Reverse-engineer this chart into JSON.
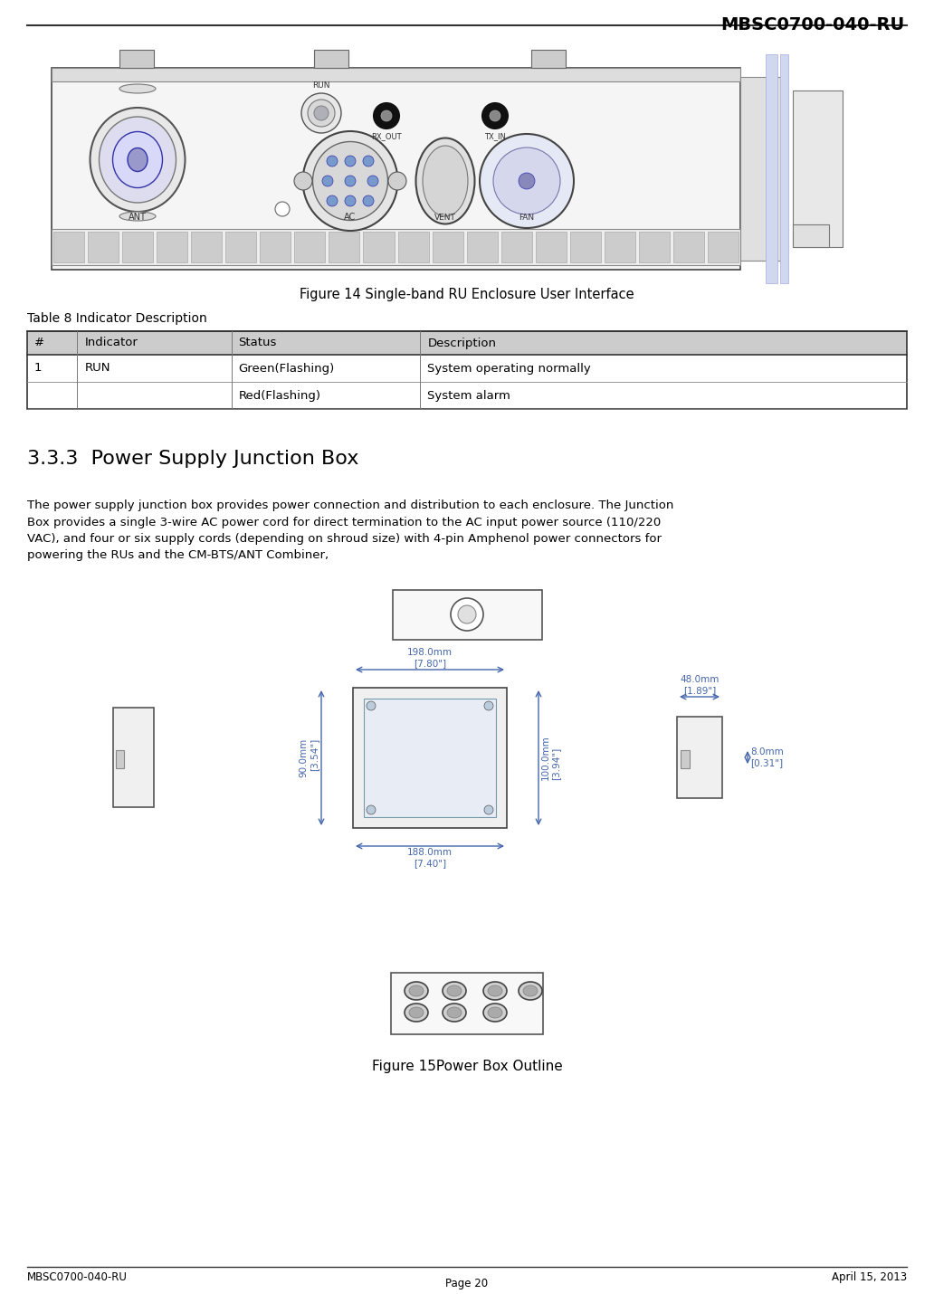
{
  "header_text": "MBSC0700-040-RU",
  "footer_left": "MBSC0700-040-RU",
  "footer_right": "April 15, 2013",
  "footer_center": "Page 20",
  "fig14_caption": "Figure 14 Single-band RU Enclosure User Interface",
  "table_title": "Table 8 Indicator Description",
  "table_headers": [
    "#",
    "Indicator",
    "Status",
    "Description"
  ],
  "table_rows": [
    [
      "1",
      "RUN",
      "Green(Flashing)",
      "System operating normally"
    ],
    [
      "",
      "",
      "Red(Flashing)",
      "System alarm"
    ]
  ],
  "section_title": "3.3.3  Power Supply Junction Box",
  "body_text": "The power supply junction box provides power connection and distribution to each enclosure. The Junction\nBox provides a single 3-wire AC power cord for direct termination to the AC input power source (110/220\nVAC), and four or six supply cords (depending on shroud size) with 4-pin Amphenol power connectors for\npowering the RUs and the CM-BTS/ANT Combiner,",
  "fig15_caption": "Figure 15Power Box Outline",
  "dim_top_w": "198.0mm\n[7.80\"]",
  "dim_bot_w": "188.0mm\n[7.40\"]",
  "dim_left_h": "90.0mm\n[3.54\"]",
  "dim_right_h": "100.0mm\n[3.94\"]",
  "dim_right_top_w": "48.0mm\n[1.89\"]",
  "dim_right_bot_h": "8.0mm\n[0.31\"]",
  "bg_color": "#ffffff",
  "text_color": "#000000",
  "dim_color": "#4466aa",
  "line_color": "#333333"
}
